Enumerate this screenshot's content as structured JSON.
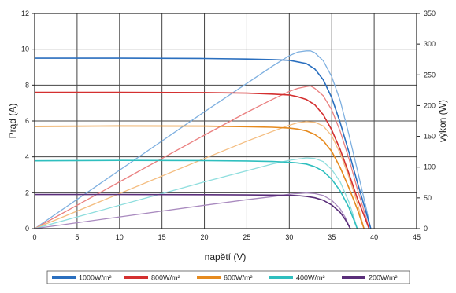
{
  "chart_data": {
    "type": "line",
    "xlabel": "napětí (V)",
    "ylabel_left": "Prąd (A)",
    "ylabel_right": "výkon (W)",
    "x_range": [
      0,
      45
    ],
    "y_left_range": [
      0,
      12
    ],
    "y_right_range": [
      0,
      350
    ],
    "x_ticks": [
      "0",
      "5",
      "10",
      "15",
      "20",
      "25",
      "30",
      "35",
      "40",
      "45"
    ],
    "y_left_ticks": [
      "0",
      "2",
      "4",
      "6",
      "8",
      "10",
      "12"
    ],
    "y_right_ticks": [
      "0",
      "50",
      "100",
      "150",
      "200",
      "250",
      "300",
      "350"
    ],
    "grid": true,
    "legend_position": "bottom",
    "series": [
      {
        "name": "1000W/m²",
        "color": "#2a6fbf",
        "light_color": "#7fb0e0",
        "current": [
          [
            0,
            9.5
          ],
          [
            10,
            9.5
          ],
          [
            20,
            9.48
          ],
          [
            25,
            9.45
          ],
          [
            28,
            9.42
          ],
          [
            30,
            9.38
          ],
          [
            32,
            9.2
          ],
          [
            33,
            8.9
          ],
          [
            34,
            8.3
          ],
          [
            35,
            7.3
          ],
          [
            36,
            5.9
          ],
          [
            37,
            4.3
          ],
          [
            38,
            2.6
          ],
          [
            39,
            1.0
          ],
          [
            39.6,
            0
          ]
        ],
        "power": [
          [
            0,
            0
          ],
          [
            10,
            95
          ],
          [
            20,
            190
          ],
          [
            25,
            236
          ],
          [
            28,
            264
          ],
          [
            30,
            281
          ],
          [
            31,
            287
          ],
          [
            32,
            289
          ],
          [
            32.5,
            289
          ],
          [
            33,
            286
          ],
          [
            34,
            273
          ],
          [
            35,
            247
          ],
          [
            36,
            208
          ],
          [
            37,
            154
          ],
          [
            38,
            96
          ],
          [
            39,
            37
          ],
          [
            39.6,
            0
          ]
        ]
      },
      {
        "name": "800W/m²",
        "color": "#d43030",
        "light_color": "#ea8080",
        "current": [
          [
            0,
            7.6
          ],
          [
            10,
            7.6
          ],
          [
            20,
            7.58
          ],
          [
            25,
            7.55
          ],
          [
            28,
            7.5
          ],
          [
            30,
            7.45
          ],
          [
            31,
            7.35
          ],
          [
            32,
            7.2
          ],
          [
            33,
            6.9
          ],
          [
            34,
            6.35
          ],
          [
            35,
            5.5
          ],
          [
            36,
            4.4
          ],
          [
            37,
            3.1
          ],
          [
            38,
            1.7
          ],
          [
            39,
            0.5
          ],
          [
            39.4,
            0
          ]
        ],
        "power": [
          [
            0,
            0
          ],
          [
            10,
            76
          ],
          [
            20,
            152
          ],
          [
            25,
            189
          ],
          [
            28,
            210
          ],
          [
            30,
            223
          ],
          [
            31,
            228
          ],
          [
            32,
            231
          ],
          [
            32.5,
            232
          ],
          [
            33,
            228
          ],
          [
            34,
            216
          ],
          [
            35,
            193
          ],
          [
            36,
            158
          ],
          [
            37,
            115
          ],
          [
            38,
            65
          ],
          [
            39,
            20
          ],
          [
            39.4,
            0
          ]
        ]
      },
      {
        "name": "600W/m²",
        "color": "#e68a1e",
        "light_color": "#f4bd80",
        "current": [
          [
            0,
            5.7
          ],
          [
            10,
            5.72
          ],
          [
            20,
            5.71
          ],
          [
            25,
            5.68
          ],
          [
            28,
            5.65
          ],
          [
            30,
            5.6
          ],
          [
            31,
            5.55
          ],
          [
            32,
            5.45
          ],
          [
            33,
            5.25
          ],
          [
            34,
            4.9
          ],
          [
            35,
            4.3
          ],
          [
            36,
            3.4
          ],
          [
            37,
            2.3
          ],
          [
            38,
            1.1
          ],
          [
            38.8,
            0
          ]
        ],
        "power": [
          [
            0,
            0
          ],
          [
            10,
            57
          ],
          [
            20,
            114
          ],
          [
            25,
            142
          ],
          [
            28,
            158
          ],
          [
            30,
            168
          ],
          [
            31,
            172
          ],
          [
            32,
            174
          ],
          [
            33,
            173
          ],
          [
            34,
            167
          ],
          [
            35,
            151
          ],
          [
            36,
            122
          ],
          [
            37,
            85
          ],
          [
            38,
            42
          ],
          [
            38.8,
            0
          ]
        ]
      },
      {
        "name": "400W/m²",
        "color": "#2fbfbf",
        "light_color": "#8fdede",
        "current": [
          [
            0,
            3.78
          ],
          [
            10,
            3.8
          ],
          [
            20,
            3.79
          ],
          [
            25,
            3.77
          ],
          [
            28,
            3.74
          ],
          [
            30,
            3.7
          ],
          [
            31,
            3.66
          ],
          [
            32,
            3.6
          ],
          [
            33,
            3.45
          ],
          [
            34,
            3.2
          ],
          [
            35,
            2.75
          ],
          [
            36,
            2.1
          ],
          [
            37,
            1.2
          ],
          [
            37.6,
            0.5
          ],
          [
            38,
            0
          ]
        ],
        "power": [
          [
            0,
            0
          ],
          [
            10,
            38
          ],
          [
            20,
            76
          ],
          [
            25,
            94
          ],
          [
            28,
            105
          ],
          [
            30,
            111
          ],
          [
            31,
            113
          ],
          [
            32,
            115
          ],
          [
            33,
            114
          ],
          [
            34,
            109
          ],
          [
            35,
            96
          ],
          [
            36,
            76
          ],
          [
            37,
            44
          ],
          [
            37.6,
            19
          ],
          [
            38,
            0
          ]
        ]
      },
      {
        "name": "200W/m²",
        "color": "#5a2e7a",
        "light_color": "#a98abf",
        "current": [
          [
            0,
            1.9
          ],
          [
            10,
            1.9
          ],
          [
            20,
            1.89
          ],
          [
            25,
            1.88
          ],
          [
            28,
            1.87
          ],
          [
            30,
            1.86
          ],
          [
            31,
            1.84
          ],
          [
            32,
            1.8
          ],
          [
            33,
            1.72
          ],
          [
            34,
            1.58
          ],
          [
            35,
            1.32
          ],
          [
            36,
            0.9
          ],
          [
            36.6,
            0.5
          ],
          [
            37.2,
            0
          ]
        ],
        "power": [
          [
            0,
            0
          ],
          [
            10,
            19
          ],
          [
            20,
            38
          ],
          [
            25,
            47
          ],
          [
            28,
            52
          ],
          [
            30,
            56
          ],
          [
            31,
            57
          ],
          [
            32,
            58
          ],
          [
            33,
            57
          ],
          [
            34,
            54
          ],
          [
            35,
            46
          ],
          [
            36,
            32
          ],
          [
            36.6,
            18
          ],
          [
            37.2,
            0
          ]
        ]
      }
    ]
  }
}
